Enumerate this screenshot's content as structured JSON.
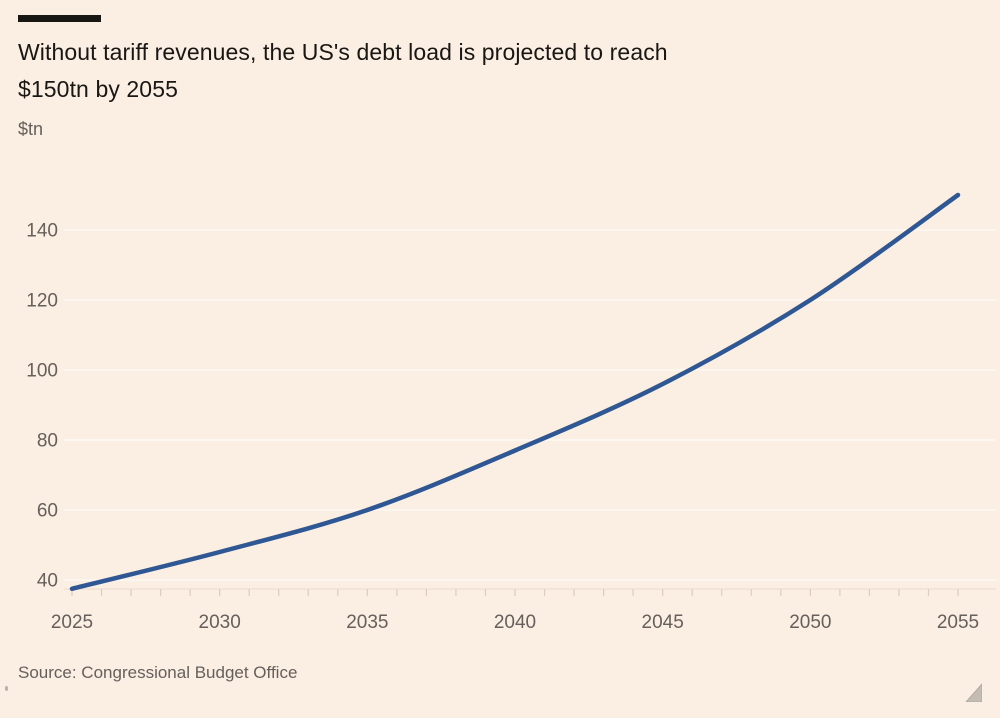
{
  "header": {
    "title_lines": [
      "Without tariff revenues, the US's debt load is projected to reach",
      "$150tn by 2055"
    ],
    "unit_label": "$tn"
  },
  "footer": {
    "source": "Source: Congressional Budget Office"
  },
  "colors": {
    "background": "#fbeee3",
    "line": "#2e5793",
    "title_text": "#191714",
    "axis_text": "#66605c",
    "gridline": "rgba(255,255,255,0.6)",
    "tick": "#dccdbf",
    "baseline": "#e8dbcd",
    "resize_handle": "#c4bdb5"
  },
  "chart_data": {
    "type": "line",
    "title": "Without tariff revenues, the US's debt load is projected to reach $150tn by 2055",
    "ylabel": "$tn",
    "xlabel": "",
    "series": [
      {
        "name": "US debt load projection ($tn)",
        "x": [
          2025,
          2030,
          2035,
          2040,
          2045,
          2050,
          2055
        ],
        "values": [
          37.5,
          48,
          60,
          77,
          96,
          120,
          150
        ]
      }
    ],
    "xticks_labeled": [
      2025,
      2030,
      2035,
      2040,
      2045,
      2050,
      2055
    ],
    "xticks_minor_interval_years": 1,
    "yticks": [
      40,
      60,
      80,
      100,
      120,
      140
    ],
    "xlim": [
      2025,
      2055
    ],
    "ylim": [
      36,
      152
    ],
    "grid": "horizontal",
    "legend": "none",
    "source": "Source: Congressional Budget Office"
  }
}
